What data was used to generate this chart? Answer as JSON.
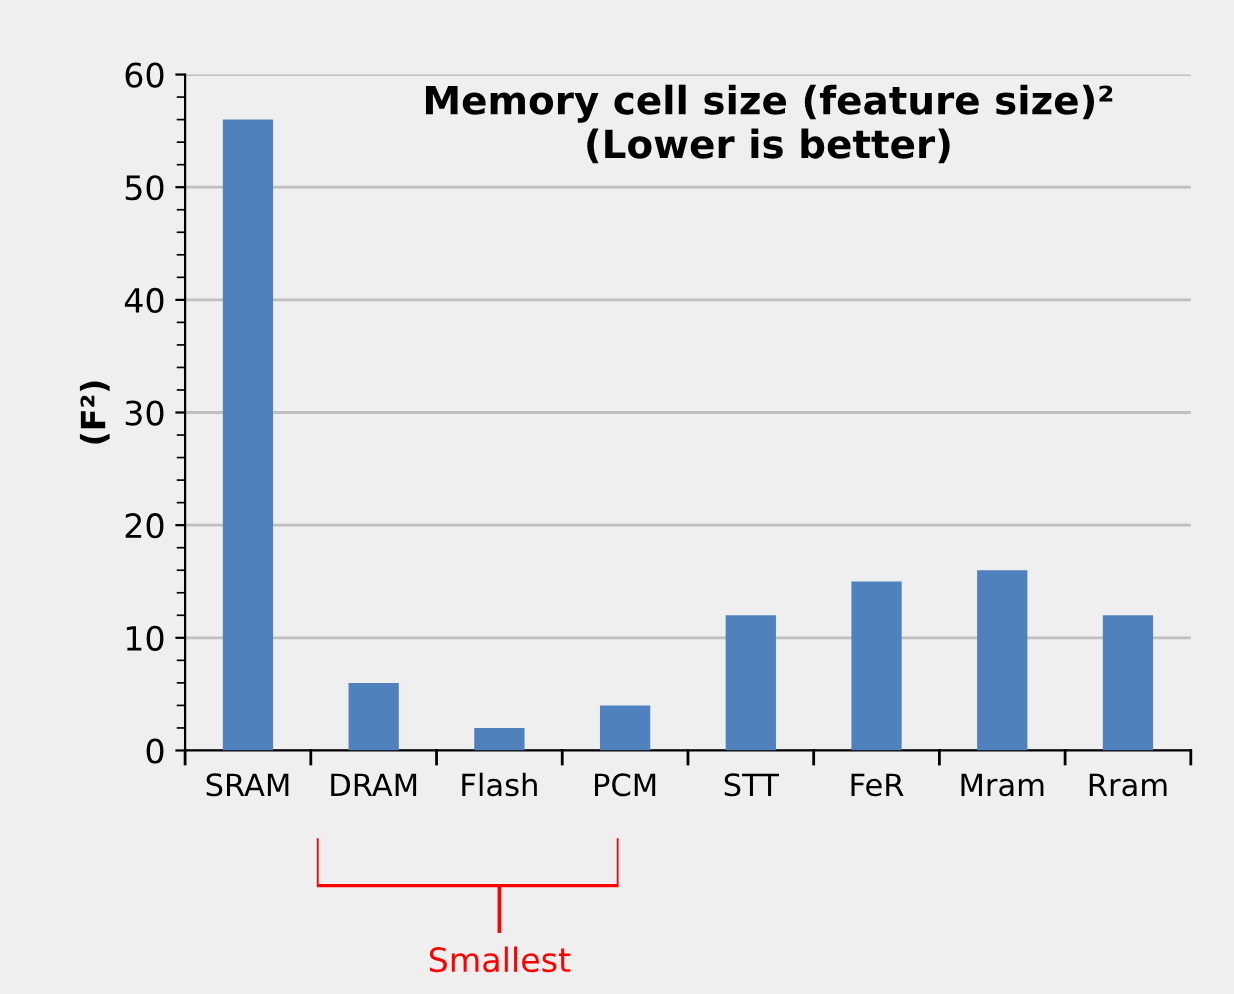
{
  "chart_data": {
    "type": "bar",
    "title": "Memory cell size (feature size)²\n(Lower is better)",
    "ylabel": "(F²)",
    "categories": [
      "SRAM",
      "DRAM",
      "Flash",
      "PCM",
      "STT",
      "FeR",
      "Mram",
      "Rram"
    ],
    "values": [
      56,
      6,
      2,
      4,
      12,
      15,
      16,
      12
    ],
    "color": "#4f81bd",
    "ylim": [
      0,
      60
    ],
    "yticks": [
      0,
      10,
      20,
      30,
      40,
      50,
      60
    ],
    "grid": "y",
    "annotations": [
      "Smallest"
    ]
  }
}
